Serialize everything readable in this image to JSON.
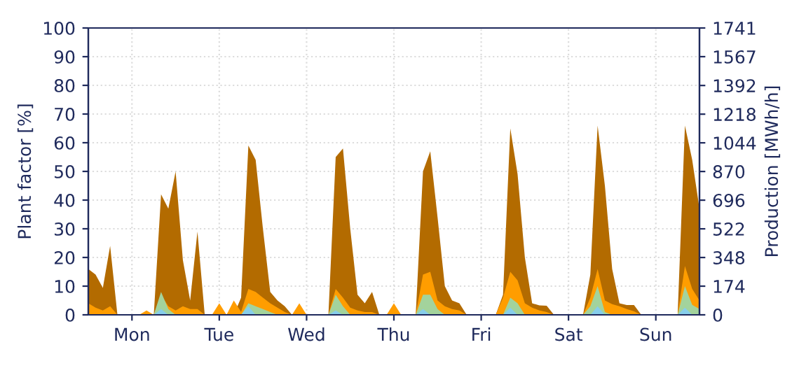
{
  "chart_data": {
    "type": "area",
    "ylabel": "Plant factor [%]",
    "y2label": "Production [MWh/h]",
    "ylim": [
      0,
      100
    ],
    "yticks": [
      0,
      10,
      20,
      30,
      40,
      50,
      60,
      70,
      80,
      90,
      100
    ],
    "y2lim": [
      0,
      1741
    ],
    "y2ticks": [
      0,
      174,
      348,
      522,
      696,
      870,
      1044,
      1218,
      1392,
      1567,
      1741
    ],
    "categories": [
      null,
      null,
      null,
      null,
      null,
      null,
      "Mon",
      null,
      null,
      null,
      null,
      null,
      null,
      null,
      null,
      null,
      null,
      null,
      "Tue",
      null,
      null,
      null,
      null,
      null,
      null,
      null,
      null,
      null,
      null,
      null,
      "Wed",
      null,
      null,
      null,
      null,
      null,
      null,
      null,
      null,
      null,
      null,
      null,
      "Thu",
      null,
      null,
      null,
      null,
      null,
      null,
      null,
      null,
      null,
      null,
      null,
      "Fri",
      null,
      null,
      null,
      null,
      null,
      null,
      null,
      null,
      null,
      null,
      null,
      "Sat",
      null,
      null,
      null,
      null,
      null,
      null,
      null,
      null,
      null,
      null,
      null,
      "Sun",
      null,
      null,
      null,
      null,
      null,
      null
    ],
    "grid": true,
    "legend": false,
    "series": [
      {
        "color": "#b36b00",
        "values": [
          16,
          14,
          9.4,
          24,
          0,
          0,
          0,
          0,
          0,
          0,
          42,
          37,
          50,
          19,
          5,
          29,
          0,
          0,
          0,
          0,
          0,
          6,
          59,
          54,
          30,
          8,
          5,
          3,
          0,
          0,
          0,
          0,
          0,
          0,
          55,
          58,
          30,
          7,
          4,
          8,
          0,
          0,
          0,
          0,
          0,
          0,
          50,
          57,
          34,
          10,
          5,
          4,
          0,
          0,
          0,
          0,
          0,
          7,
          65,
          49,
          20,
          4,
          3.3,
          3.2,
          0,
          0,
          0,
          0,
          0,
          14,
          66,
          45,
          16,
          4,
          3.4,
          3.4,
          0,
          0,
          0,
          0,
          0,
          0,
          66,
          54,
          37
        ]
      },
      {
        "color": "#ff9d00",
        "values": [
          4,
          2.5,
          1.5,
          3,
          0,
          0,
          0,
          0,
          1.5,
          0,
          7,
          3,
          1.5,
          3,
          2,
          2,
          0,
          0,
          4,
          0,
          5,
          1,
          9,
          8,
          6,
          4,
          2.5,
          1,
          0,
          4,
          0,
          0,
          0,
          0,
          9,
          6,
          2.5,
          1.5,
          1,
          1,
          0,
          0,
          4,
          0,
          0,
          0,
          14,
          15,
          5,
          3,
          2,
          1.5,
          0,
          0,
          0,
          0,
          0,
          6,
          15,
          12,
          4,
          2.5,
          1.5,
          1,
          0,
          0,
          0,
          0,
          0,
          6,
          16,
          5,
          3.7,
          3,
          2,
          1.2,
          0,
          0,
          0,
          0,
          0,
          0,
          17,
          9,
          5
        ]
      },
      {
        "color": "#a3d39c",
        "values": [
          0,
          0,
          0,
          0,
          0,
          0,
          0,
          0,
          0,
          0,
          8,
          2,
          0,
          0,
          0,
          0,
          0,
          0,
          0,
          0,
          0,
          0,
          4,
          3,
          2,
          1,
          0,
          0,
          0,
          0,
          0,
          0,
          0,
          0,
          7,
          3,
          0,
          0,
          0,
          0,
          0,
          0,
          0,
          0,
          0,
          0,
          7,
          7,
          2,
          0,
          0,
          0,
          0,
          0,
          0,
          0,
          0,
          0,
          6,
          4,
          0,
          0,
          0,
          0,
          0,
          0,
          0,
          0,
          0,
          3,
          10,
          1,
          0,
          0,
          0,
          0,
          0,
          0,
          0,
          0,
          0,
          0,
          10,
          3.5,
          2
        ]
      },
      {
        "color": "#87ceeb",
        "values": [
          0,
          0,
          0,
          0,
          0,
          0,
          0,
          0,
          0,
          0,
          2,
          0,
          0,
          0,
          0,
          0,
          0,
          0,
          0,
          0,
          0,
          0,
          3,
          0,
          0,
          0,
          0,
          0,
          0,
          0,
          0,
          0,
          0,
          0,
          1.5,
          0,
          0,
          0,
          0,
          0,
          0,
          0,
          0,
          0,
          0,
          0,
          2,
          0,
          0,
          0,
          0,
          0,
          0,
          0,
          0,
          0,
          0,
          0,
          2.5,
          0,
          0,
          0,
          0,
          0,
          0,
          0,
          0,
          0,
          0,
          0,
          3,
          0,
          0,
          0,
          0,
          0,
          0,
          0,
          0,
          0,
          0,
          0,
          2.5,
          0,
          0
        ]
      }
    ]
  }
}
